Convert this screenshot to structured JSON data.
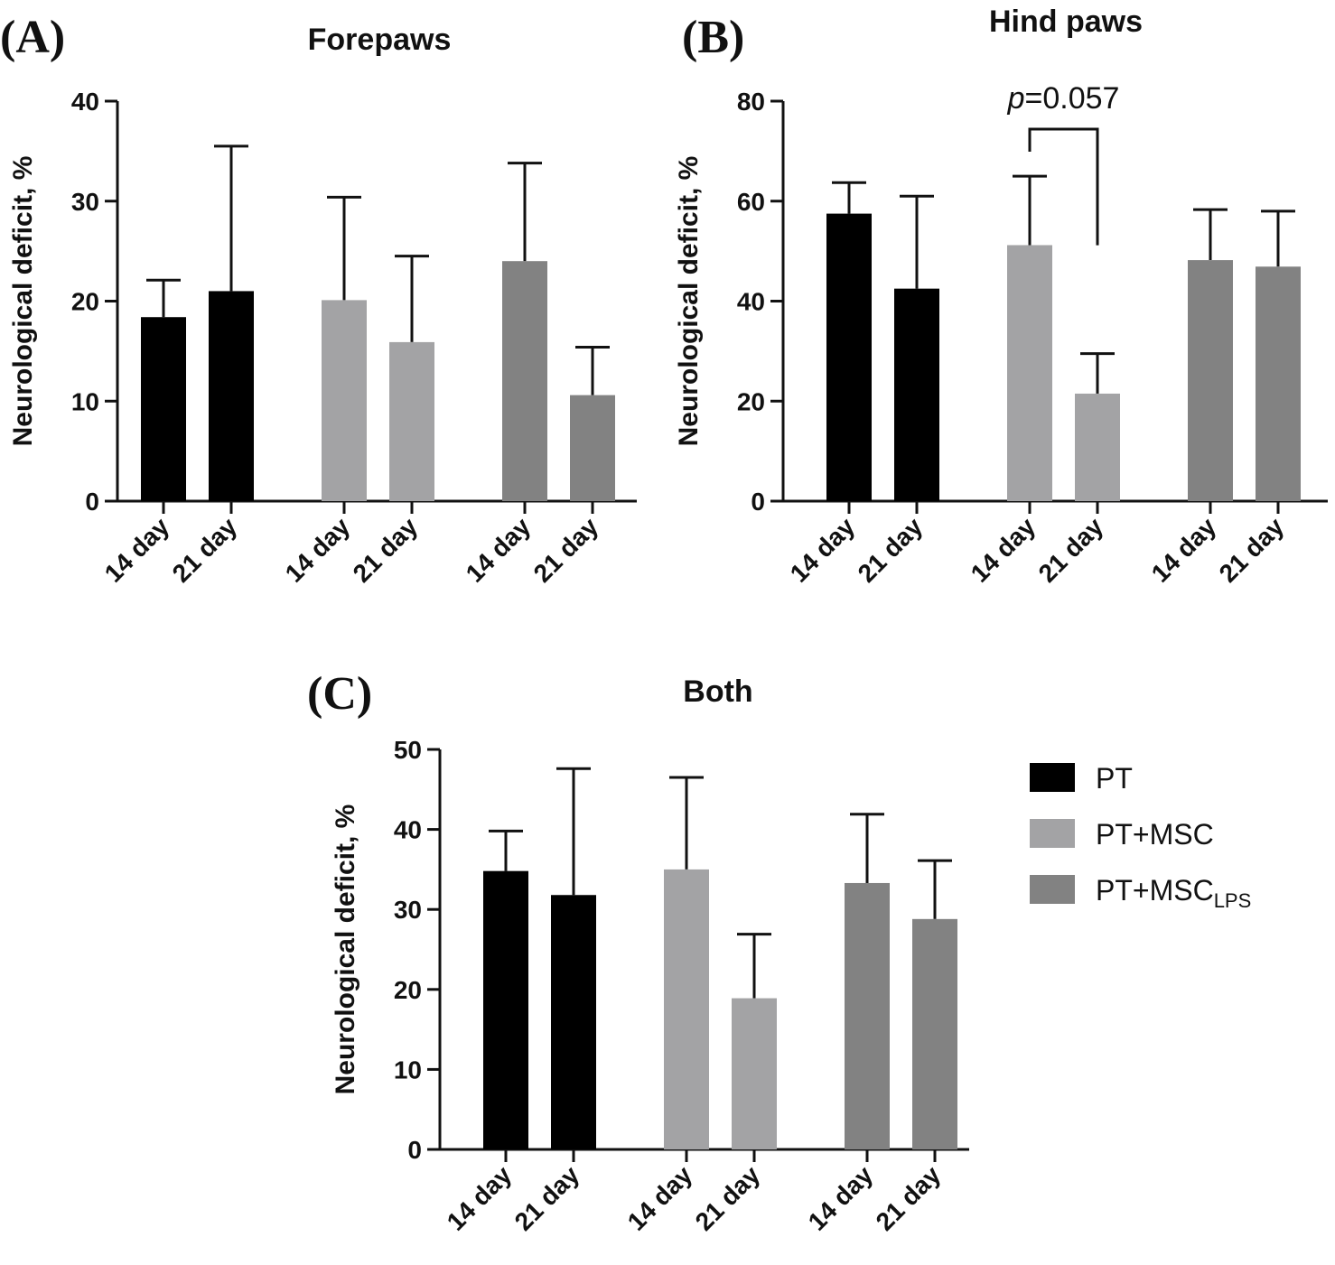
{
  "chart_data": [
    {
      "type": "bar",
      "label": "(A)",
      "title": "Forepaws",
      "ylabel": "Neurological deficit, %",
      "categories": [
        "14 day",
        "21 day"
      ],
      "series": [
        {
          "values": [
            18.4,
            21.0
          ],
          "errors": [
            3.7,
            14.5
          ]
        },
        {
          "values": [
            20.1,
            15.9
          ],
          "errors": [
            10.3,
            8.6
          ]
        },
        {
          "values": [
            24.0,
            10.6
          ],
          "errors": [
            9.8,
            4.8
          ]
        }
      ],
      "ylim": [
        0,
        40
      ],
      "yticks": [
        0,
        10,
        20,
        30,
        40
      ]
    },
    {
      "type": "bar",
      "label": "(B)",
      "title": "Hind paws",
      "ylabel": "Neurological deficit, %",
      "categories": [
        "14 day",
        "21 day"
      ],
      "series": [
        {
          "values": [
            57.5,
            42.5
          ],
          "errors": [
            6.2,
            18.5
          ]
        },
        {
          "values": [
            51.2,
            21.5
          ],
          "errors": [
            13.8,
            8.0
          ]
        },
        {
          "values": [
            48.2,
            46.9
          ],
          "errors": [
            10.1,
            11.1
          ]
        }
      ],
      "ylim": [
        0,
        80
      ],
      "yticks": [
        0,
        20,
        40,
        60,
        80
      ],
      "annotation": {
        "italic": "p",
        "text": "=0.057"
      }
    },
    {
      "type": "bar",
      "label": "(C)",
      "title": "Both",
      "ylabel": "Neurological deficit, %",
      "categories": [
        "14 day",
        "21 day"
      ],
      "series": [
        {
          "values": [
            34.8,
            31.8
          ],
          "errors": [
            5.0,
            15.8
          ]
        },
        {
          "values": [
            35.0,
            18.9
          ],
          "errors": [
            11.5,
            8.0
          ]
        },
        {
          "values": [
            33.3,
            28.8
          ],
          "errors": [
            8.6,
            7.3
          ]
        }
      ],
      "ylim": [
        0,
        50
      ],
      "yticks": [
        0,
        10,
        20,
        30,
        40,
        50
      ]
    }
  ],
  "legend": [
    {
      "name": "PT",
      "color": "#000000"
    },
    {
      "name": "PT+MSC",
      "color": "#a3a3a5"
    },
    {
      "name": "PT+MSC",
      "sub": "LPS",
      "color": "#828282"
    }
  ]
}
